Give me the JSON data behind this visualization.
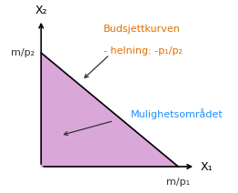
{
  "bg_color": "#ffffff",
  "fill_color": "#d9a8d9",
  "line_color": "#000000",
  "axis_color": "#000000",
  "label_x1": "X₁",
  "label_x2": "X₂",
  "label_mp1": "m/p₁",
  "label_mp2": "m/p₂",
  "title_text": "Budsjettkurven",
  "subtitle_text": "- helning: -p₁/p₂",
  "region_text": "Mulighetsområdet",
  "title_color": "#E07000",
  "region_color": "#1E90FF",
  "annotation_color": "#333333",
  "font_size_labels": 8,
  "font_size_title": 8,
  "font_size_region": 8,
  "font_size_axis": 9
}
